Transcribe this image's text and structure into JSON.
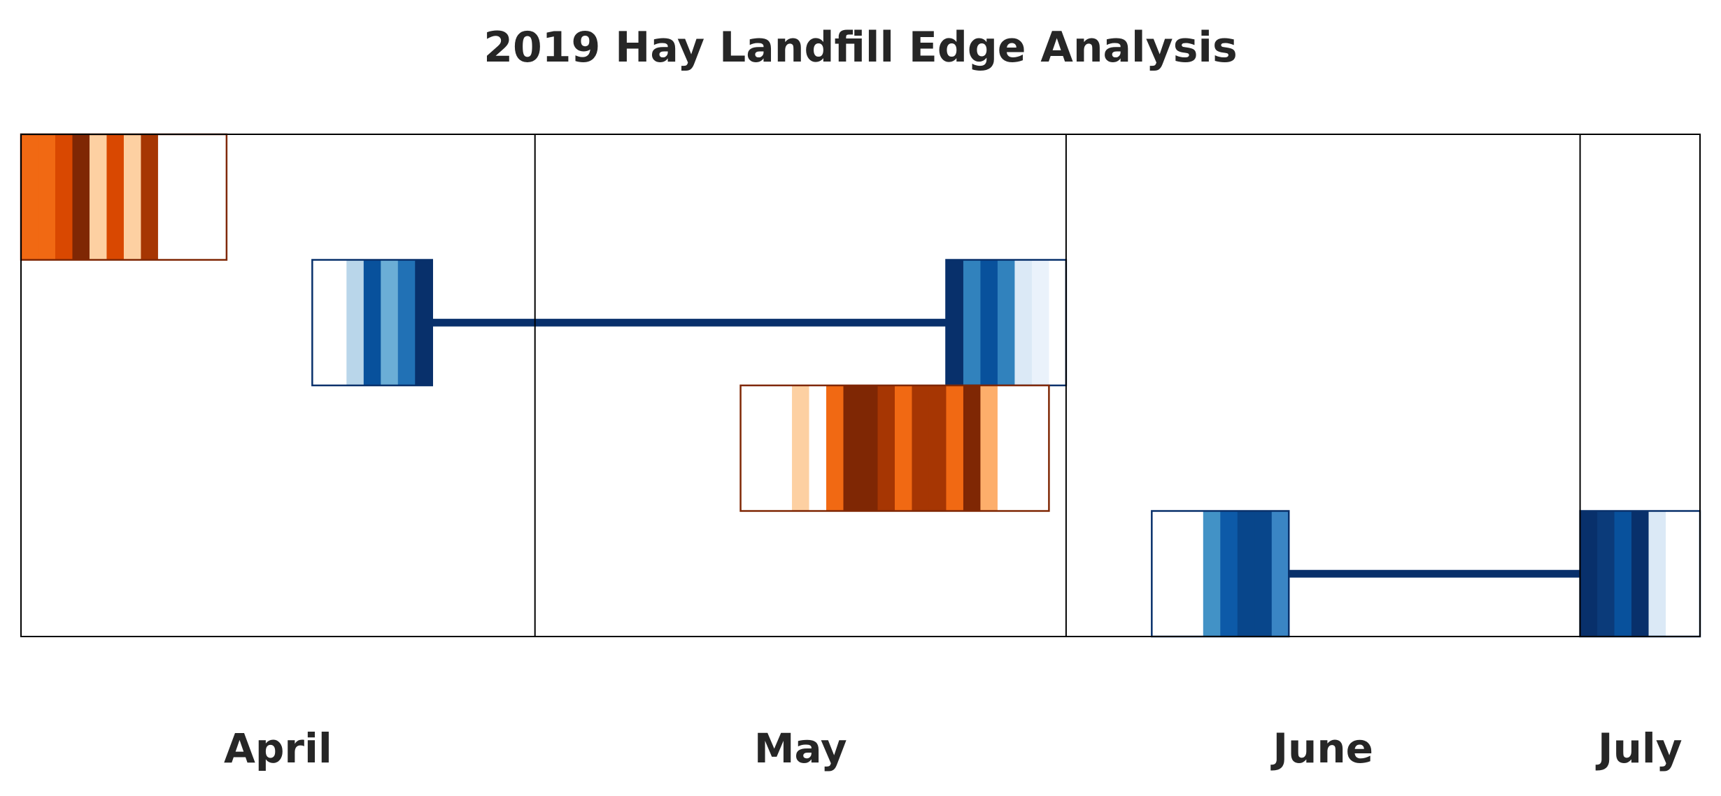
{
  "chart_data": {
    "type": "timeline",
    "title": "2019 Hay Landfill Edge Analysis",
    "x_axis": {
      "type": "date",
      "range": [
        "2019-04-01",
        "2019-07-08"
      ],
      "month_dividers": [
        "2019-05-01",
        "2019-06-01",
        "2019-07-01"
      ],
      "month_labels": [
        "April",
        "May",
        "June",
        "July"
      ]
    },
    "lanes": 4,
    "palettes": {
      "orange": {
        "border": "#7f2704",
        "stripes": [
          "#f16913",
          "#d94801",
          "#7f2704",
          "#fdd0a2",
          "#f16913",
          "#fdd0a2",
          "#a63603",
          "#ffffff",
          "#ffffff",
          "#ffffff",
          "#ffffff",
          "#ffffff",
          "#ffffff",
          "#ffffff",
          "#fdd0a2",
          "#ffffff",
          "#f16913",
          "#7f2704",
          "#7f2704",
          "#a63603",
          "#f16913",
          "#a63603",
          "#a63603",
          "#f16913",
          "#7f2704",
          "#fdae6b"
        ]
      },
      "blue": {
        "border": "#08306b",
        "connector": "#08306b",
        "stripes": [
          "#ffffff",
          "#b9d6ea",
          "#08519c",
          "#6baed6",
          "#2171b5",
          "#08306b",
          "#08306b",
          "#3182bd",
          "#08519c",
          "#3182bd",
          "#dbe9f6",
          "#eaf2fb",
          "#ffffff",
          "#ffffff",
          "#ffffff",
          "#4292c6",
          "#0d5aa8",
          "#08468b",
          "#08468b",
          "#3a85c4",
          "#08306b",
          "#0b3b7a",
          "#08519c",
          "#08306b",
          "#dbe9f6",
          "#ffffff"
        ]
      }
    },
    "bars": [
      {
        "lane": 0,
        "palette": "orange",
        "start": "2019-04-01",
        "end": "2019-04-13",
        "stripes": [
          "#f16913",
          "#f16913",
          "#d94801",
          "#7f2704",
          "#fdd0a2",
          "#d94801",
          "#fdd0a2",
          "#a63603",
          "#ffffff",
          "#ffffff",
          "#ffffff",
          "#ffffff"
        ]
      },
      {
        "lane": 1,
        "palette": "blue",
        "start": "2019-04-18",
        "end": "2019-04-25",
        "stripes": [
          "#ffffff",
          "#ffffff",
          "#b9d6ea",
          "#08519c",
          "#6baed6",
          "#2171b5",
          "#08306b"
        ]
      },
      {
        "lane": 1,
        "palette": "blue",
        "start": "2019-05-25",
        "end": "2019-06-01",
        "stripes": [
          "#08306b",
          "#3182bd",
          "#08519c",
          "#3182bd",
          "#dbe9f6",
          "#eaf2fb",
          "#ffffff"
        ]
      },
      {
        "lane": 2,
        "palette": "orange",
        "start": "2019-05-13",
        "end": "2019-05-31",
        "stripes": [
          "#ffffff",
          "#ffffff",
          "#ffffff",
          "#fdd0a2",
          "#ffffff",
          "#f16913",
          "#7f2704",
          "#7f2704",
          "#a63603",
          "#f16913",
          "#a63603",
          "#a63603",
          "#f16913",
          "#7f2704",
          "#fdae6b",
          "#ffffff",
          "#ffffff",
          "#ffffff"
        ]
      },
      {
        "lane": 3,
        "palette": "blue",
        "start": "2019-06-06",
        "end": "2019-06-14",
        "stripes": [
          "#ffffff",
          "#ffffff",
          "#ffffff",
          "#4292c6",
          "#0d5aa8",
          "#08468b",
          "#08468b",
          "#3a85c4"
        ]
      },
      {
        "lane": 3,
        "palette": "blue",
        "start": "2019-07-01",
        "end": "2019-07-08",
        "stripes": [
          "#08306b",
          "#0b3b7a",
          "#08519c",
          "#08306b",
          "#dbe9f6",
          "#ffffff",
          "#ffffff"
        ]
      }
    ],
    "connectors": [
      {
        "lane": 1,
        "from": "2019-04-25",
        "to": "2019-05-25"
      },
      {
        "lane": 3,
        "from": "2019-06-14",
        "to": "2019-07-01"
      }
    ],
    "grid": false,
    "legend": "none"
  }
}
